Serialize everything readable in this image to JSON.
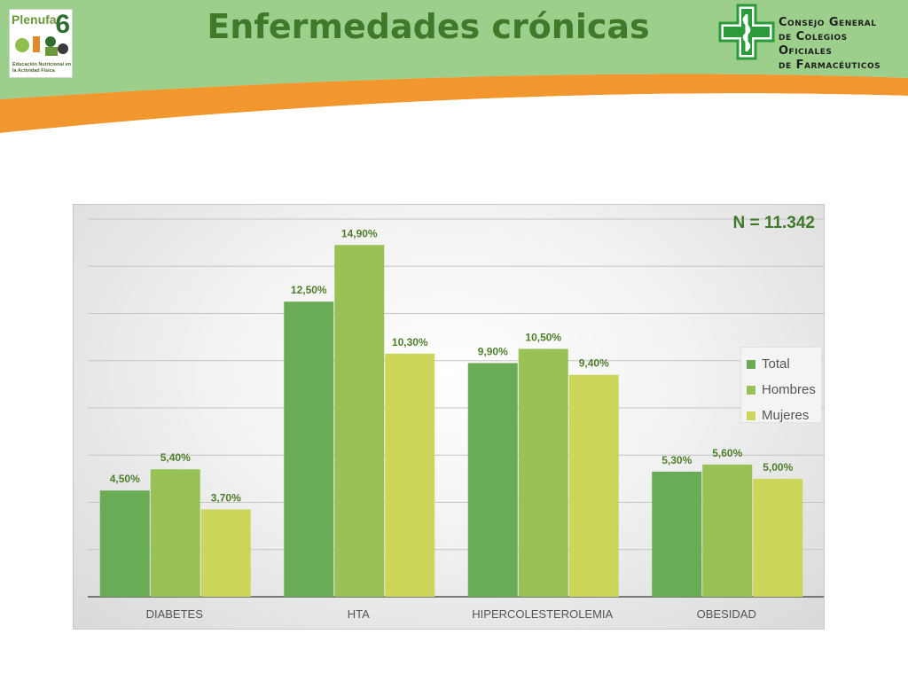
{
  "header": {
    "title": "Enfermedades crónicas",
    "logo_left": {
      "brand": "Plenufar",
      "number": "6",
      "subtitle": "Educación Nutricional en la Actividad Física"
    },
    "logo_right": {
      "lines": [
        "Consejo General",
        "de Colegios Oficiales",
        "de Farmacéuticos"
      ]
    }
  },
  "colors": {
    "header_green": "#9ccf8c",
    "orange": "#f2962e",
    "title_green": "#3f7a2a",
    "total": "#6aab56",
    "hombres": "#98c256",
    "mujeres": "#cbd65a",
    "label_text": "#4f7f2c"
  },
  "chart_data": {
    "type": "bar",
    "title": "",
    "annotation": "N = 11.342",
    "categories": [
      "DIABETES",
      "HTA",
      "HIPERCOLESTEROLEMIA",
      "OBESIDAD"
    ],
    "series": [
      {
        "name": "Total",
        "values": [
          4.5,
          12.5,
          9.9,
          5.3
        ],
        "labels": [
          "4,50%",
          "12,50%",
          "9,90%",
          "5,30%"
        ]
      },
      {
        "name": "Hombres",
        "values": [
          5.4,
          14.9,
          10.5,
          5.6
        ],
        "labels": [
          "5,40%",
          "14,90%",
          "10,50%",
          "5,60%"
        ]
      },
      {
        "name": "Mujeres",
        "values": [
          3.7,
          10.3,
          9.4,
          5.0
        ],
        "labels": [
          "3,70%",
          "10,30%",
          "9,40%",
          "5,00%"
        ]
      }
    ],
    "ylim": [
      0,
      16
    ],
    "grid": true,
    "legend_position": "right",
    "xlabel": "",
    "ylabel": ""
  }
}
